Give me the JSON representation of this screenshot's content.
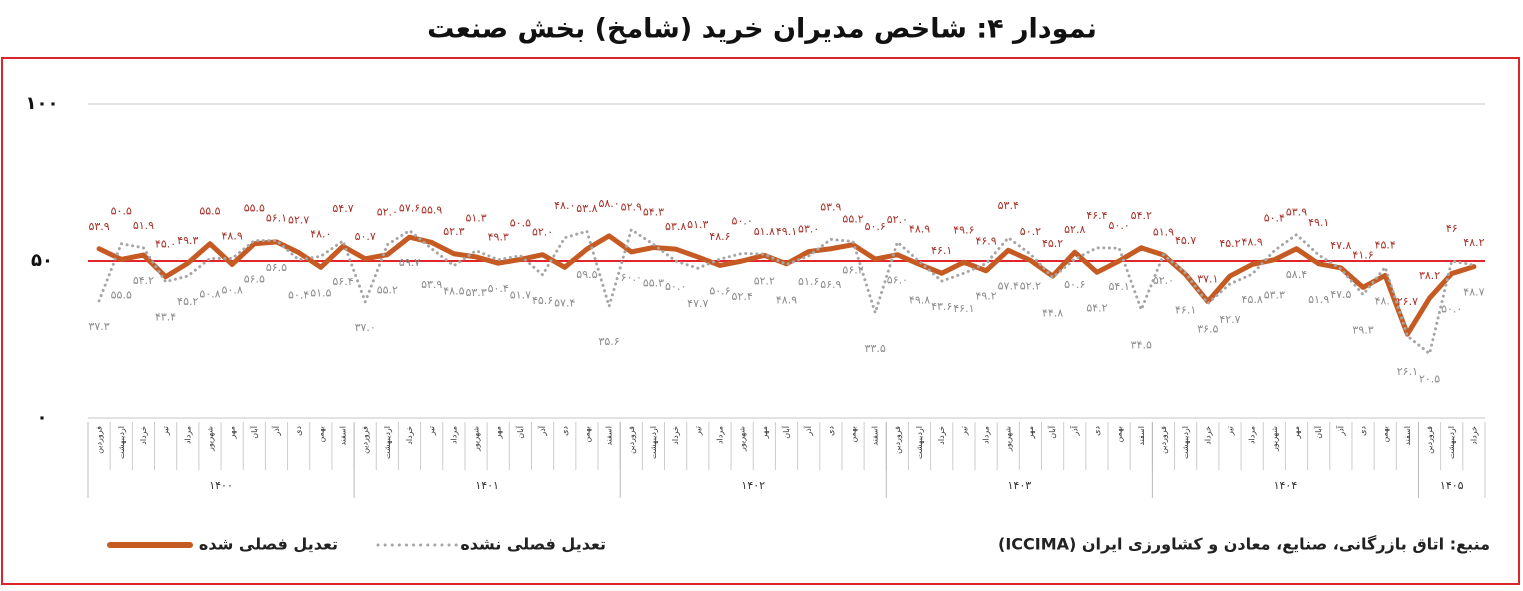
{
  "chart_data": {
    "type": "line",
    "title": "نمودار ۴: شاخص مدیران خرید (شامخ) بخش صنعت",
    "categories": [
      "فروردین",
      "اردیبهشت",
      "خرداد",
      "تیر",
      "مرداد",
      "شهریور",
      "مهر",
      "آبان",
      "آذر",
      "دی",
      "بهمن",
      "اسفند",
      "فروردین",
      "اردیبهشت",
      "خرداد",
      "تیر",
      "مرداد",
      "شهریور",
      "مهر",
      "آبان",
      "آذر",
      "دی",
      "بهمن",
      "اسفند",
      "فروردین",
      "اردیبهشت",
      "خرداد",
      "تیر",
      "مرداد",
      "شهریور",
      "مهر",
      "آبان",
      "آذر",
      "دی",
      "بهمن",
      "اسفند",
      "فروردین",
      "اردیبهشت",
      "خرداد",
      "تیر",
      "مرداد",
      "شهریور",
      "مهر",
      "آبان",
      "آذر",
      "دی",
      "بهمن",
      "اسفند",
      "فروردین",
      "اردیبهشت",
      "خرداد",
      "تیر",
      "مرداد",
      "شهریور",
      "مهر",
      "آبان",
      "آذر",
      "دی",
      "بهمن",
      "اسفند",
      "فروردین",
      "اردیبهشت",
      "خرداد"
    ],
    "groups": [
      "۱۴۰۰",
      "۱۴۰۱",
      "۱۴۰۲",
      "۱۴۰۳",
      "۱۴۰۴",
      "۱۴۰۵"
    ],
    "series": [
      {
        "name": "تعدیل فصلی شده",
        "color": "#c55a22",
        "style": "solid",
        "label_color": "#a8322a",
        "values": [
          53.9,
          50.5,
          51.9,
          45.0,
          49.3,
          55.5,
          48.9,
          55.5,
          56.1,
          52.7,
          48.0,
          54.7,
          50.7,
          52.0,
          57.6,
          55.9,
          52.3,
          51.3,
          49.3,
          50.5,
          52.0,
          48.0,
          53.8,
          58.0,
          52.9,
          54.3,
          53.8,
          51.3,
          48.6,
          50.0,
          51.8,
          49.1,
          53.0,
          53.9,
          55.2,
          50.6,
          52.0,
          48.9,
          46.1,
          49.6,
          46.9,
          53.4,
          50.2,
          45.2,
          52.8,
          46.4,
          50.0,
          54.2,
          51.9,
          45.7,
          37.1,
          45.2,
          48.9,
          50.4,
          53.9,
          49.1,
          47.8,
          41.6,
          45.4,
          26.7,
          38.2,
          46.0,
          48.2
        ],
        "value_labels": [
          "۵۳.۹",
          "۵۰.۵",
          "۵۱.۹",
          "۴۵.۰",
          "۴۹.۳",
          "۵۵.۵",
          "۴۸.۹",
          "۵۵.۵",
          "۵۶.۱",
          "۵۲.۷",
          "۴۸.۰",
          "۵۴.۷",
          "۵۰.۷",
          "۵۲.۰",
          "۵۷.۶",
          "۵۵.۹",
          "۵۲.۳",
          "۵۱.۳",
          "۴۹.۳",
          "۵۰.۵",
          "۵۲.۰",
          "۴۸.۰",
          "۵۳.۸",
          "۵۸.۰",
          "۵۲.۹",
          "۵۴.۳",
          "۵۳.۸",
          "۵۱.۳",
          "۴۸.۶",
          "۵۰.۰",
          "۵۱.۸",
          "۴۹.۱",
          "۵۳.۰",
          "۵۳.۹",
          "۵۵.۲",
          "۵۰.۶",
          "۵۲.۰",
          "۴۸.۹",
          "۴۶.۱",
          "۴۹.۶",
          "۴۶.۹",
          "۵۳.۴",
          "۵۰.۲",
          "۴۵.۲",
          "۵۲.۸",
          "۴۶.۴",
          "۵۰.۰",
          "۵۴.۲",
          "۵۱.۹",
          "۴۵.۷",
          "۳۷.۱",
          "۴۵.۲",
          "۴۸.۹",
          "۵۰.۴",
          "۵۳.۹",
          "۴۹.۱",
          "۴۷.۸",
          "۴۱.۶",
          "۴۵.۴",
          "۲۶.۷",
          "۳۸.۲",
          "۴۶",
          "۴۸.۲"
        ]
      },
      {
        "name": "تعدیل فصلی نشده",
        "color": "#a6a6a6",
        "style": "dotted",
        "label_color": "#8c8c8c",
        "values": [
          37.3,
          55.5,
          54.2,
          43.4,
          45.2,
          50.8,
          50.8,
          56.5,
          56.5,
          50.4,
          51.5,
          56.4,
          37.0,
          55.2,
          59.7,
          53.9,
          48.5,
          53.3,
          50.4,
          51.7,
          45.6,
          57.4,
          59.5,
          35.6,
          60.0,
          55.3,
          50.0,
          47.7,
          50.6,
          52.4,
          52.2,
          48.9,
          51.6,
          56.9,
          56.2,
          33.5,
          56.0,
          49.8,
          43.6,
          46.1,
          49.2,
          57.4,
          52.2,
          44.8,
          50.6,
          54.2,
          54.1,
          34.5,
          52.0,
          46.1,
          36.5,
          42.7,
          45.8,
          53.3,
          58.4,
          51.9,
          47.5,
          39.3,
          48.0,
          26.1,
          20.5,
          50.0,
          48.7
        ],
        "value_labels": [
          "۳۷.۳",
          "۵۵.۵",
          "۵۴.۲",
          "۴۳.۴",
          "۴۵.۲",
          "۵۰.۸",
          "۵۰.۸",
          "۵۶.۵",
          "۵۶.۵",
          "۵۰.۴",
          "۵۱.۵",
          "۵۶.۴",
          "۳۷.۰",
          "۵۵.۲",
          "۵۹.۷",
          "۵۳.۹",
          "۴۸.۵",
          "۵۳.۳",
          "۵۰.۴",
          "۵۱.۷",
          "۴۵.۶",
          "۵۷.۴",
          "۵۹.۵",
          "۳۵.۶",
          "۶۰.۰",
          "۵۵.۳",
          "۵۰.۰",
          "۴۷.۷",
          "۵۰.۶",
          "۵۲.۴",
          "۵۲.۲",
          "۴۸.۹",
          "۵۱.۶",
          "۵۶.۹",
          "۵۶.۲",
          "۳۳.۵",
          "۵۶.۰",
          "۴۹.۸",
          "۴۳.۶",
          "۴۶.۱",
          "۴۹.۲",
          "۵۷.۴",
          "۵۲.۲",
          "۴۴.۸",
          "۵۰.۶",
          "۵۴.۲",
          "۵۴.۱",
          "۳۴.۵",
          "۵۲.۰",
          "۴۶.۱",
          "۳۶.۵",
          "۴۲.۷",
          "۴۵.۸",
          "۵۳.۳",
          "۵۸.۴",
          "۵۱.۹",
          "۴۷.۵",
          "۳۹.۳",
          "۴۸.۰",
          "۲۶.۱",
          "۲۰.۵",
          "۵۰.۰",
          "۴۸.۷"
        ]
      }
    ],
    "ylim": [
      0,
      100
    ],
    "yticks": [
      {
        "value": 0,
        "label": "۰"
      },
      {
        "value": 50,
        "label": "۵۰"
      },
      {
        "value": 100,
        "label": "۱۰۰"
      }
    ],
    "grid": true,
    "reference_line": {
      "value": 50,
      "color": "#e0262b"
    },
    "legend": "bottom-left",
    "source": "منبع: اتاق بازرگانی، صنایع، معادن و کشاورزی ایران (ICCIMA)"
  }
}
